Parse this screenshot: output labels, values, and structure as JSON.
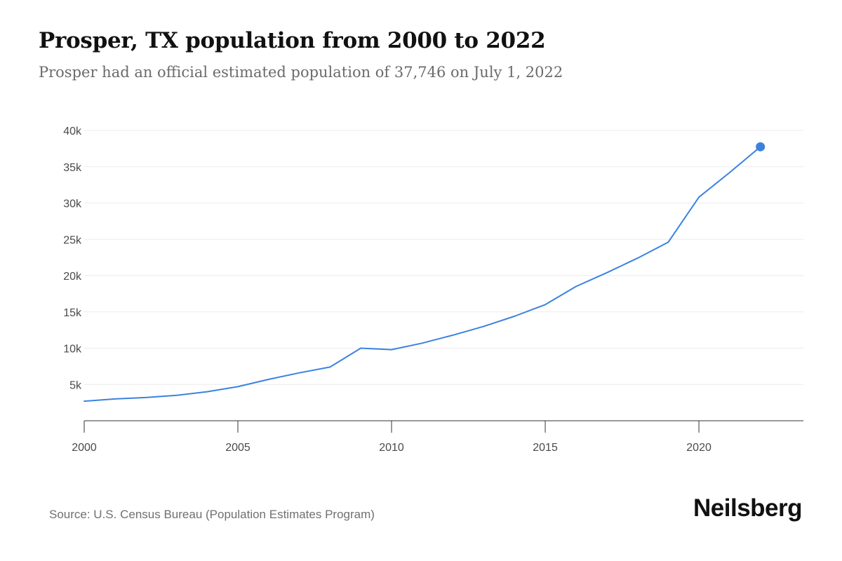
{
  "header": {
    "title": "Prosper, TX population from 2000 to 2022",
    "subtitle": "Prosper had an official estimated population of 37,746 on July 1, 2022"
  },
  "footer": {
    "source": "Source: U.S. Census Bureau (Population Estimates Program)",
    "brand": "Neilsberg"
  },
  "colors": {
    "line": "#3b82e0",
    "grid": "#ebebeb",
    "axis": "#333333"
  },
  "chart_data": {
    "type": "line",
    "title": "Prosper, TX population from 2000 to 2022",
    "xlabel": "",
    "ylabel": "",
    "x": [
      2000,
      2001,
      2002,
      2003,
      2004,
      2005,
      2006,
      2007,
      2008,
      2009,
      2010,
      2011,
      2012,
      2013,
      2014,
      2015,
      2016,
      2017,
      2018,
      2019,
      2020,
      2021,
      2022
    ],
    "series": [
      {
        "name": "Population",
        "values": [
          2700,
          3000,
          3200,
          3500,
          4000,
          4700,
          5700,
          6600,
          7400,
          10000,
          9800,
          10700,
          11800,
          13000,
          14400,
          16000,
          18500,
          20400,
          22400,
          24600,
          30800,
          34200,
          37746
        ]
      }
    ],
    "xlim": [
      2000,
      2023.4
    ],
    "ylim": [
      0,
      40000
    ],
    "x_ticks": [
      2000,
      2005,
      2010,
      2015,
      2020
    ],
    "x_tick_labels": [
      "2000",
      "2005",
      "2010",
      "2015",
      "2020"
    ],
    "y_ticks": [
      5000,
      10000,
      15000,
      20000,
      25000,
      30000,
      35000,
      40000
    ],
    "y_tick_labels": [
      "5k",
      "10k",
      "15k",
      "20k",
      "25k",
      "30k",
      "35k",
      "40k"
    ],
    "grid": true,
    "highlight_last_point": true
  }
}
